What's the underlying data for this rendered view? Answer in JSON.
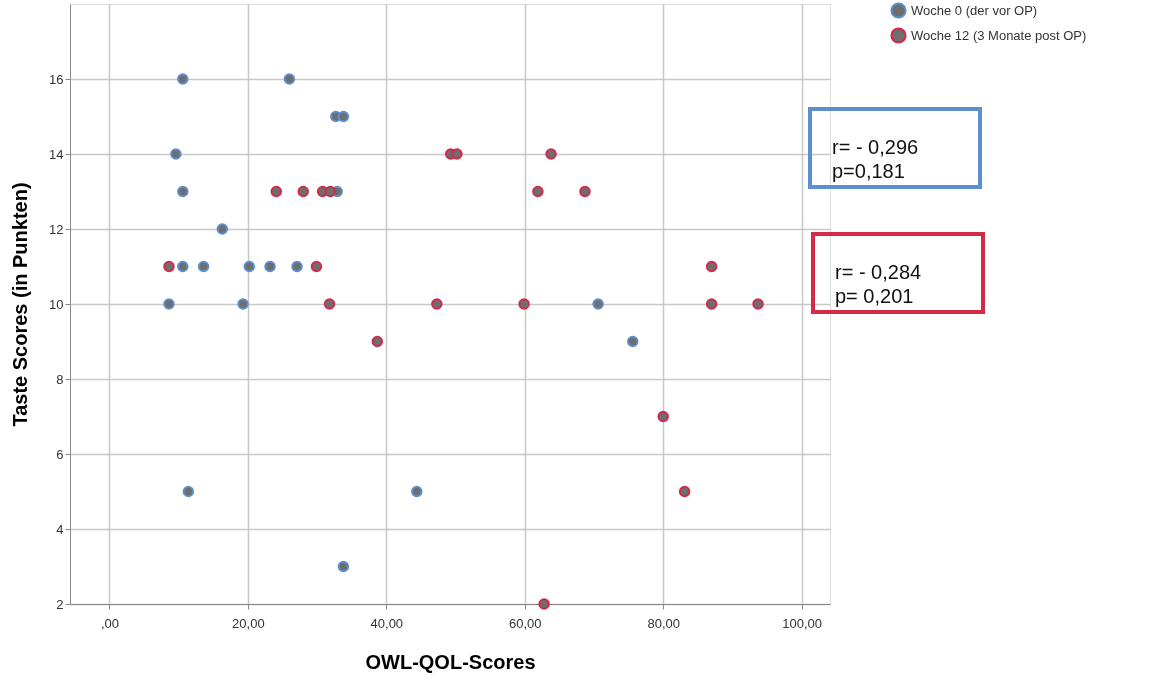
{
  "chart_data": {
    "type": "scatter",
    "xlabel": "OWL-QOL-Scores",
    "ylabel": "Taste Scores (in Punkten)",
    "xlim": [
      -5.7,
      104.1
    ],
    "ylim": [
      2,
      18
    ],
    "xticks": [
      {
        "value": 0,
        "label": ",00"
      },
      {
        "value": 20,
        "label": "20,00"
      },
      {
        "value": 40,
        "label": "40,00"
      },
      {
        "value": 60,
        "label": "60,00"
      },
      {
        "value": 80,
        "label": "80,00"
      },
      {
        "value": 100,
        "label": "100,00"
      }
    ],
    "yticks": [
      2,
      4,
      6,
      8,
      10,
      12,
      14,
      16
    ],
    "grid": true,
    "legend": "top right",
    "marker": "circle",
    "series": [
      {
        "name": "Woche 0 (der vor OP)",
        "color": "#5b8fd0",
        "x": [
          10.6,
          26.0,
          32.7,
          33.8,
          9.6,
          10.6,
          32.9,
          16.3,
          10.6,
          13.6,
          20.2,
          23.2,
          27.1,
          8.6,
          19.3,
          70.6,
          75.6,
          11.4,
          44.4,
          33.8
        ],
        "values": [
          16,
          16,
          15,
          15,
          14,
          13,
          13,
          12,
          11,
          11,
          11,
          11,
          11,
          10,
          10,
          10,
          9,
          5,
          5,
          3
        ]
      },
      {
        "name": "Woche 12 (3 Monate post OP)",
        "color": "#d6294a",
        "x": [
          8.6,
          24.1,
          28.0,
          30.8,
          31.9,
          49.3,
          50.2,
          63.8,
          61.9,
          68.7,
          29.9,
          31.8,
          38.7,
          47.3,
          59.9,
          87.0,
          87.0,
          93.7,
          80.0,
          83.1,
          62.8
        ],
        "values": [
          11,
          13,
          13,
          13,
          13,
          14,
          14,
          14,
          13,
          13,
          11,
          10,
          9,
          10,
          10,
          11,
          10,
          10,
          7,
          5,
          2
        ]
      }
    ],
    "annotations": [
      "r= - 0,296\np=0,181",
      "r= - 0,284\np= 0,201"
    ]
  }
}
